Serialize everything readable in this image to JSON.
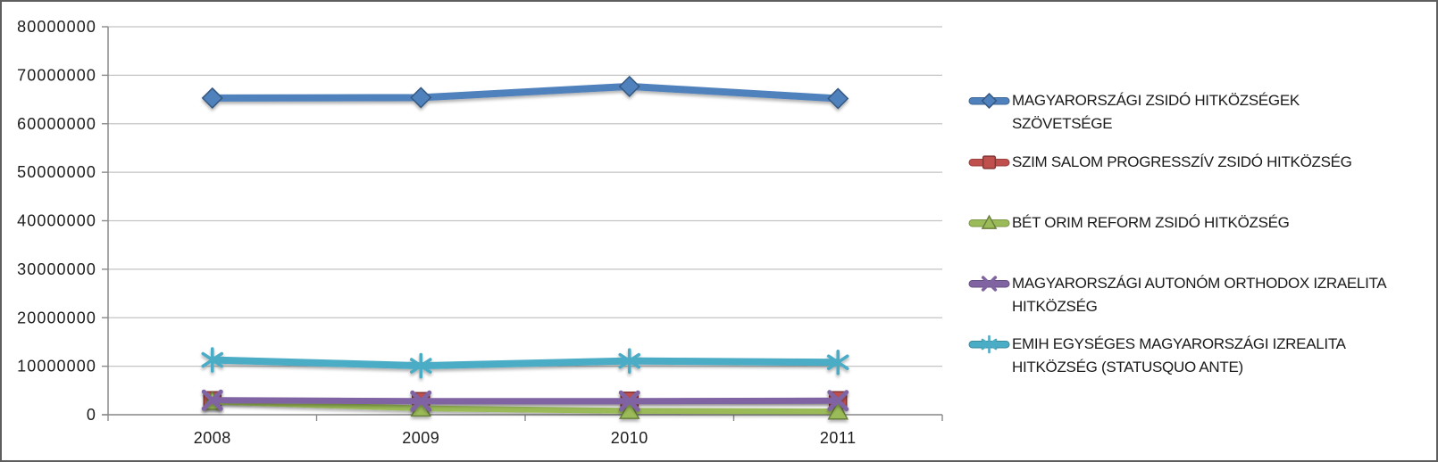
{
  "chart": {
    "background": "#FFFFFF",
    "frame_border_color": "#5E5E5E",
    "gridline_color": "#C4C4C4",
    "axis_color": "#8A8A8A",
    "text_color": "#1C1C1C"
  },
  "chart_data": {
    "type": "line",
    "title": "",
    "xlabel": "",
    "ylabel": "",
    "categories": [
      "2008",
      "2009",
      "2010",
      "2011"
    ],
    "series": [
      {
        "name": "MAGYARORSZÁGI ZSIDÓ HITKÖZSÉGEK SZÖVETSÉGE",
        "values": [
          65300000,
          65400000,
          67700000,
          65200000
        ],
        "color": "#4F81BD",
        "marker": "diamond",
        "line_width": 8
      },
      {
        "name": "SZIM SALOM PROGRESSZÍV ZSIDÓ HITKÖZSÉG",
        "values": [
          3000000,
          2800000,
          2900000,
          3000000
        ],
        "color": "#C0504D",
        "marker": "square",
        "line_width": 4.5
      },
      {
        "name": "BÉT ORIM REFORM ZSIDÓ HITKÖZSÉG",
        "values": [
          2700000,
          1300000,
          800000,
          700000
        ],
        "color": "#9BBB59",
        "marker": "triangle",
        "line_width": 6.5
      },
      {
        "name": "MAGYARORSZÁGI AUTONÓM ORTHODOX IZRAELITA HITKÖZSÉG",
        "values": [
          3000000,
          2800000,
          2800000,
          2900000
        ],
        "color": "#8064A2",
        "marker": "x",
        "line_width": 7
      },
      {
        "name": "EMIH EGYSÉGES MAGYARORSZÁGI IZREALITA HITKÖZSÉG (STATUSQUO ANTE)",
        "values": [
          11300000,
          10100000,
          11100000,
          10800000
        ],
        "color": "#4BACC6",
        "marker": "asterisk",
        "line_width": 8
      }
    ],
    "ylim": [
      0,
      80000000
    ],
    "ytick_step": 10000000,
    "y_tick_labels": [
      "80000000",
      "70000000",
      "60000000",
      "50000000",
      "40000000",
      "30000000",
      "20000000",
      "10000000",
      "0"
    ],
    "grid": true,
    "legend_position": "right-of-plot"
  }
}
